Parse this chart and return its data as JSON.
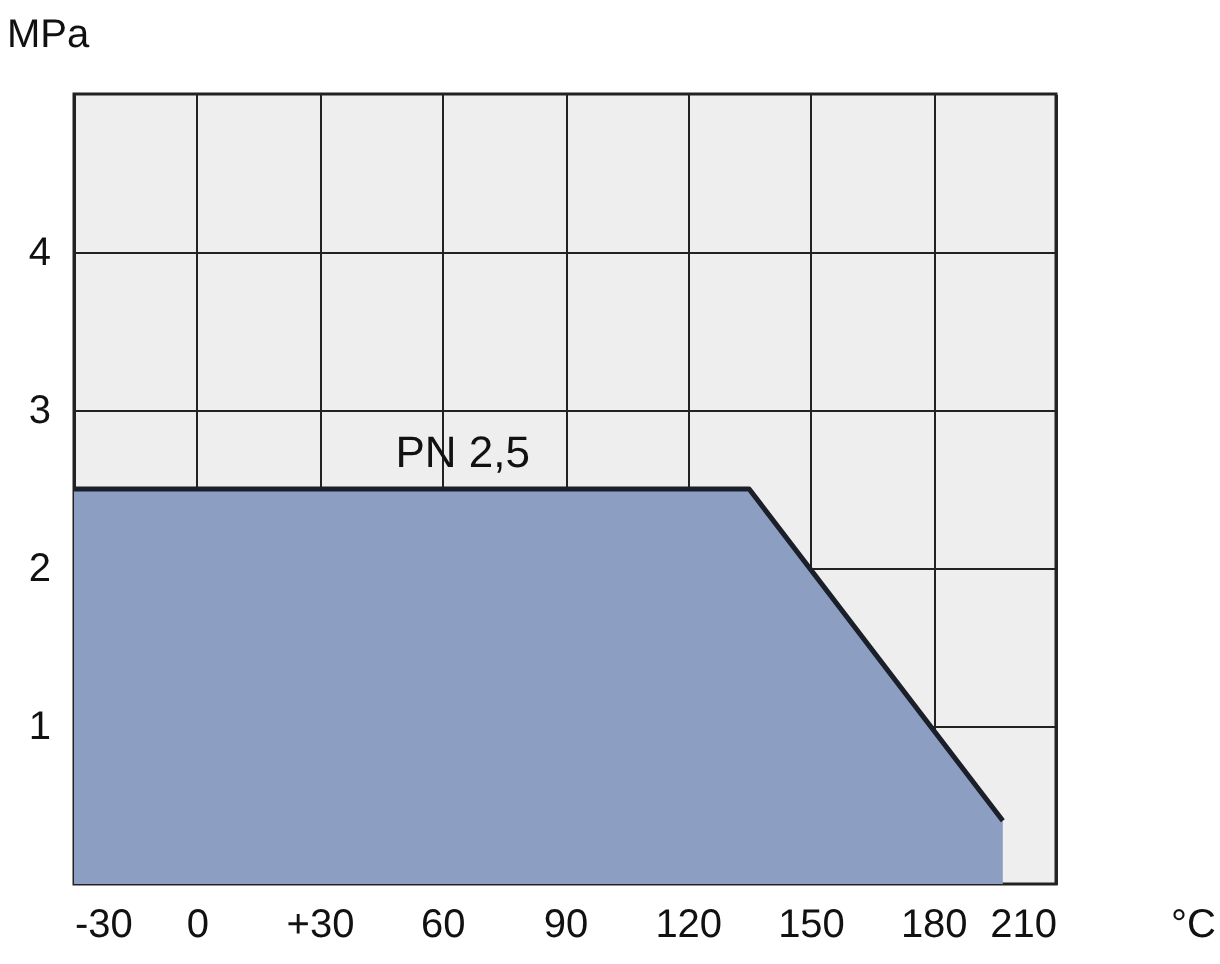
{
  "chart_data": {
    "type": "area",
    "xlabel": "°C",
    "ylabel": "MPa",
    "x": [
      -30,
      135,
      197,
      197
    ],
    "series": [
      {
        "color": "#8c9fc2",
        "values": [
          2.5,
          2.5,
          0.4,
          0
        ]
      }
    ],
    "xlim": [
      -30,
      210
    ],
    "xticks": [
      -30,
      0,
      {
        "value": 30,
        "label": "+30"
      },
      60,
      90,
      120,
      150,
      180,
      210
    ],
    "ylim": [
      0,
      5
    ],
    "yticks": [
      1,
      2,
      3,
      4
    ],
    "grid": true,
    "annotations": [
      {
        "text": "PN 2,5",
        "x": 65,
        "y": 2.5
      }
    ]
  }
}
